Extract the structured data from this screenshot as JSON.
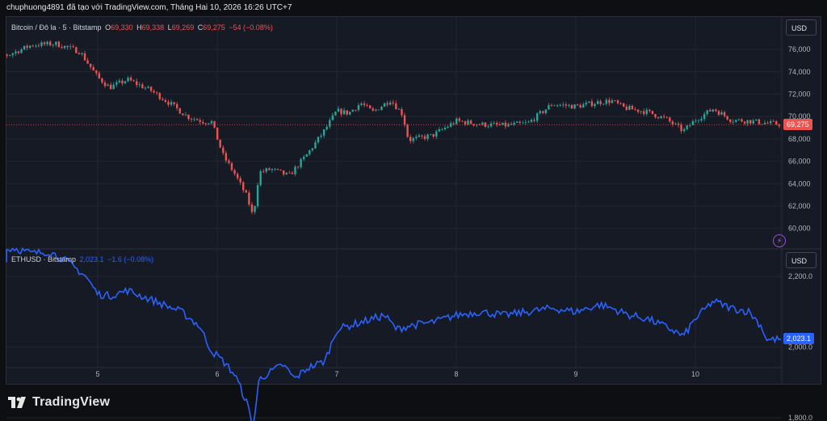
{
  "header": {
    "text": "chuphuong4891 đã tạo với TradingView.com, Tháng Hai 10, 2026 16:26 UTC+7"
  },
  "btc_legend": {
    "symbol": "Bitcoin / Đô la · 5 · Bitstamp",
    "open_label": "O",
    "open": "69,330",
    "high_label": "H",
    "high": "69,338",
    "low_label": "L",
    "low": "69,269",
    "close_label": "C",
    "close": "69,275",
    "change": "−54 (−0.08%)"
  },
  "eth_legend": {
    "symbol": "ETHUSD · Bitstamp",
    "value": "2,023.1",
    "change": "−1.6 (−0.08%)"
  },
  "currency_buttons": {
    "top": "USD",
    "bottom": "USD"
  },
  "colors": {
    "up": "#26a69a",
    "down": "#ef5350",
    "eth_line": "#2962ff",
    "bg": "#161a25",
    "grid": "#232632"
  },
  "brand": {
    "name": "TradingView"
  },
  "chart_data": [
    {
      "type": "candlestick",
      "name": "Bitcoin / Đô la · 5 · Bitstamp",
      "x_ticks": [
        "5",
        "6",
        "7",
        "8",
        "9",
        "10"
      ],
      "y_ticks": [
        "60,000",
        "62,000",
        "64,000",
        "66,000",
        "68,000",
        "70,000",
        "72,000",
        "74,000",
        "76,000"
      ],
      "y_tick_values": [
        60000,
        62000,
        64000,
        66000,
        68000,
        70000,
        72000,
        74000,
        76000
      ],
      "ylim": [
        58300,
        78700
      ],
      "last_price": "69,275",
      "last_value": 69275,
      "x": [
        4.25,
        4.45,
        4.65,
        4.85,
        5.0,
        5.1,
        5.25,
        5.45,
        5.6,
        5.75,
        5.9,
        5.95,
        6.05,
        6.15,
        6.25,
        6.3,
        6.35,
        6.45,
        6.6,
        6.75,
        6.9,
        7.0,
        7.1,
        7.2,
        7.3,
        7.45,
        7.55,
        7.6,
        7.8,
        8.0,
        8.2,
        8.4,
        8.6,
        8.8,
        9.0,
        9.2,
        9.3,
        9.4,
        9.6,
        9.75,
        9.9,
        10.0,
        10.15,
        10.3,
        10.45,
        10.6,
        10.75
      ],
      "values": [
        75500,
        76400,
        76500,
        75800,
        73500,
        72600,
        73300,
        72300,
        71200,
        70000,
        69500,
        69600,
        66500,
        64800,
        62800,
        61000,
        65000,
        65300,
        64700,
        66600,
        68800,
        70500,
        70300,
        71200,
        70400,
        71500,
        70200,
        67900,
        68300,
        69600,
        69300,
        69200,
        69400,
        71100,
        70900,
        71300,
        71400,
        70800,
        70400,
        69800,
        68700,
        69700,
        70700,
        69700,
        69600,
        69400,
        69275
      ]
    },
    {
      "type": "line",
      "name": "ETHUSD · Bitstamp",
      "x_ticks": [
        "5",
        "6",
        "7",
        "8",
        "9",
        "10"
      ],
      "y_ticks": [
        "1,800.0",
        "2,000.0",
        "2,200.0"
      ],
      "y_tick_values": [
        1800,
        2000,
        2200
      ],
      "ylim": [
        1700,
        2330
      ],
      "last_price": "2,023.1",
      "last_value": 2023.1,
      "x": [
        4.0,
        4.15,
        4.3,
        4.45,
        4.6,
        4.75,
        4.9,
        5.0,
        5.1,
        5.25,
        5.4,
        5.55,
        5.7,
        5.85,
        5.95,
        6.05,
        6.15,
        6.25,
        6.3,
        6.35,
        6.45,
        6.55,
        6.65,
        6.75,
        6.9,
        7.0,
        7.2,
        7.4,
        7.5,
        7.6,
        7.8,
        8.0,
        8.2,
        8.4,
        8.6,
        8.8,
        9.0,
        9.2,
        9.3,
        9.45,
        9.6,
        9.8,
        9.9,
        10.0,
        10.15,
        10.3,
        10.45,
        10.55,
        10.6,
        10.75
      ],
      "values": [
        2240,
        2270,
        2280,
        2265,
        2270,
        2240,
        2200,
        2150,
        2145,
        2160,
        2140,
        2120,
        2100,
        2060,
        1990,
        1960,
        1920,
        1840,
        1770,
        1910,
        1930,
        1950,
        1910,
        1940,
        1960,
        2050,
        2070,
        2090,
        2050,
        2060,
        2070,
        2090,
        2100,
        2090,
        2100,
        2110,
        2100,
        2120,
        2110,
        2090,
        2080,
        2050,
        2030,
        2080,
        2130,
        2110,
        2100,
        2060,
        2020,
        2023.1
      ]
    }
  ]
}
